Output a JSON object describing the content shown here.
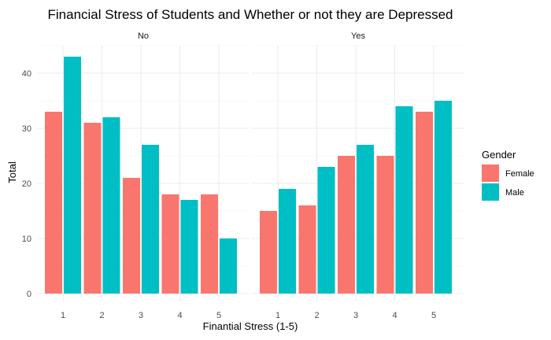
{
  "chart_data": {
    "type": "bar",
    "title": "Financial Stress of Students and Whether or not they are Depressed",
    "xlabel": "Finantial Stress (1-5)",
    "ylabel": "Total",
    "categories": [
      "1",
      "2",
      "3",
      "4",
      "5"
    ],
    "ylim": [
      0,
      45
    ],
    "yticks": [
      0,
      10,
      20,
      30,
      40
    ],
    "grid": true,
    "legend": {
      "title": "Gender",
      "position": "right",
      "items": [
        {
          "label": "Female",
          "color": "#F8766D"
        },
        {
          "label": "Male",
          "color": "#00BFC4"
        }
      ]
    },
    "facets": [
      {
        "label": "No",
        "series": [
          {
            "name": "Female",
            "color": "#F8766D",
            "values": [
              33,
              31,
              21,
              18,
              18
            ]
          },
          {
            "name": "Male",
            "color": "#00BFC4",
            "values": [
              43,
              32,
              27,
              17,
              10
            ]
          }
        ]
      },
      {
        "label": "Yes",
        "series": [
          {
            "name": "Female",
            "color": "#F8766D",
            "values": [
              15,
              16,
              25,
              25,
              33
            ]
          },
          {
            "name": "Male",
            "color": "#00BFC4",
            "values": [
              19,
              23,
              27,
              34,
              35
            ]
          }
        ]
      }
    ]
  }
}
